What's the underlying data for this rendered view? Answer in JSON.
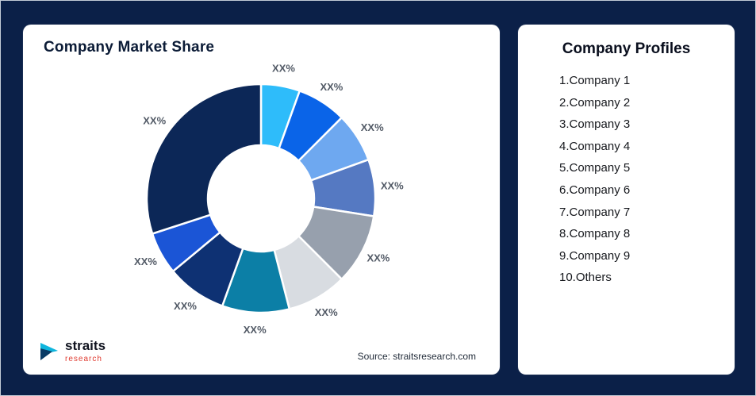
{
  "page": {
    "background": "#0b2048"
  },
  "left_card": {
    "title": "Company Market Share",
    "source": "Source: straitsresearch.com",
    "logo": {
      "brand": "straits",
      "sub_brand": "research"
    }
  },
  "right_card": {
    "title": "Company Profiles",
    "items": [
      "1.Company 1",
      "2.Company 2",
      "3.Company 3",
      "4.Company 4",
      "5.Company 5",
      "6.Company 6",
      "7.Company 7",
      "8.Company 8",
      "9.Company 9",
      "10.Others"
    ]
  },
  "chart_data": {
    "type": "pie",
    "subtype": "donut",
    "title": "Company Market Share",
    "labels": [
      "Company 1",
      "Company 2",
      "Company 3",
      "Company 4",
      "Company 5",
      "Company 6",
      "Company 7",
      "Company 8",
      "Company 9",
      "Others"
    ],
    "display_labels": [
      "XX%",
      "XX%",
      "XX%",
      "XX%",
      "XX%",
      "XX%",
      "XX%",
      "XX%",
      "XX%",
      "XX%"
    ],
    "values": [
      5.5,
      7,
      7,
      8,
      10,
      8.5,
      9.5,
      8.5,
      6,
      30
    ],
    "values_note": "Slice sizes estimated from arc angles; all data labels show placeholder XX%",
    "colors": [
      "#2ebcfa",
      "#0a64e8",
      "#6ea8f0",
      "#5579c2",
      "#97a0ad",
      "#d8dce1",
      "#0c7fa6",
      "#0e3173",
      "#1b55d6",
      "#0c2757"
    ],
    "label_color": "#525a66",
    "inner_radius_ratio": 0.465,
    "start_angle_deg": 0,
    "direction": "clockwise",
    "legend_position": "none",
    "source": "Source: straitsresearch.com"
  }
}
